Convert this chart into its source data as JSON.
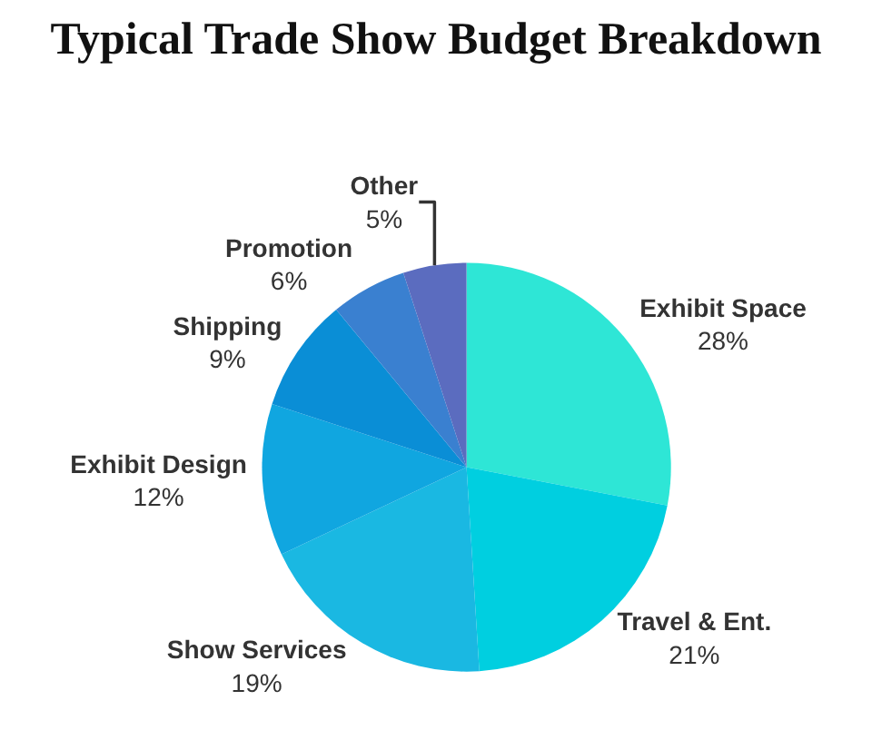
{
  "chart_data": {
    "type": "pie",
    "title": "Typical Trade Show Budget Breakdown",
    "categories": [
      "Exhibit Space",
      "Travel & Ent.",
      "Show Services",
      "Exhibit Design",
      "Shipping",
      "Promotion",
      "Other"
    ],
    "values": [
      28,
      21,
      19,
      12,
      9,
      6,
      5
    ],
    "value_labels": [
      "28%",
      "21%",
      "19%",
      "12%",
      "9%",
      "6%",
      "5%"
    ],
    "colors": [
      "#2ee6d6",
      "#00cfe0",
      "#1ab8e2",
      "#10a6e0",
      "#0a8ed6",
      "#3a80d0",
      "#5b6cbf"
    ],
    "legend": false
  }
}
